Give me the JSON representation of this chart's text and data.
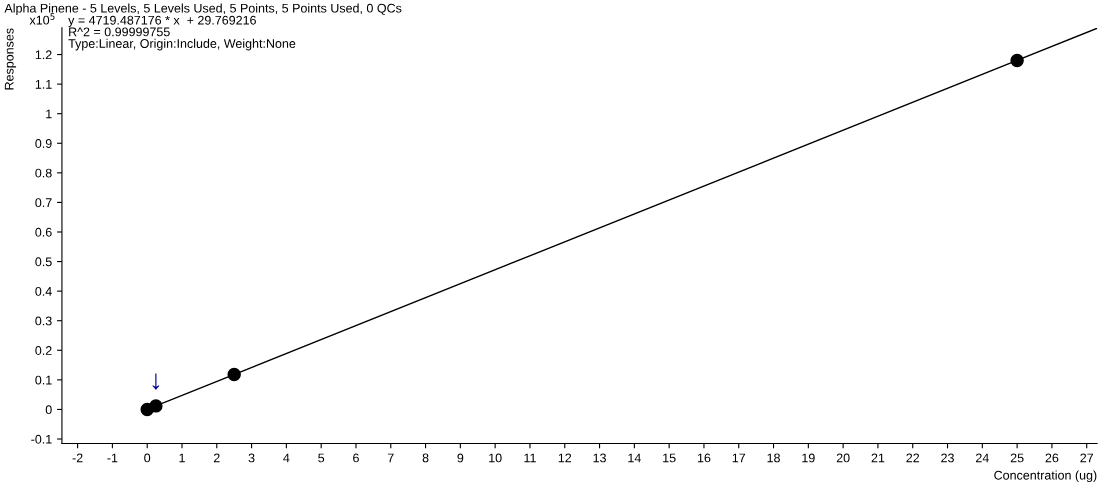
{
  "chart_data": {
    "type": "scatter",
    "title": "Alpha Pinene - 5 Levels, 5 Levels Used, 5 Points, 5 Points Used, 0 QCs",
    "xlabel": "Concentration (ug)",
    "ylabel": "Responses",
    "xlim": [
      -2.45,
      27.3
    ],
    "ylim": [
      -0.115,
      1.29
    ],
    "xticks": [
      -2,
      -1,
      0,
      1,
      2,
      3,
      4,
      5,
      6,
      7,
      8,
      9,
      10,
      11,
      12,
      13,
      14,
      15,
      16,
      17,
      18,
      19,
      20,
      21,
      22,
      23,
      24,
      25,
      26,
      27
    ],
    "yticks": [
      -0.1,
      0,
      0.1,
      0.2,
      0.3,
      0.4,
      0.5,
      0.6,
      0.7,
      0.8,
      0.9,
      1,
      1.1,
      1.2
    ],
    "grid": false,
    "legend": false,
    "marker": "circle",
    "series": [
      {
        "type": "line",
        "color": "#000000",
        "x": [
          0.25,
          27.3
        ],
        "values": [
          0.012,
          1.289
        ],
        "marker": "none",
        "line_style": "solid"
      },
      {
        "color": "#000000",
        "x": [
          0,
          0.25,
          2.5,
          25
        ],
        "values": [
          0,
          0.012,
          0.118,
          1.18
        ]
      }
    ],
    "annotations": [
      "x10$^{5}$",
      "y = 4719.487176 * x  + 29.769216",
      "R^2 = 0.99999755",
      "Type:Linear, Origin:Include, Weight:None",
      {
        "text": "↓",
        "x": 0.25,
        "y": 0.012
      }
    ]
  }
}
